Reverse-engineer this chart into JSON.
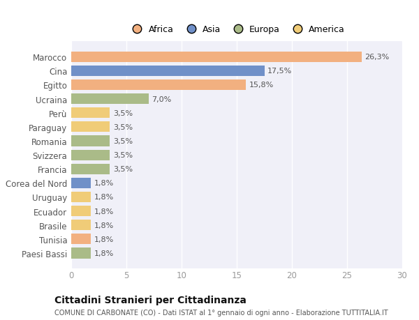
{
  "categories": [
    "Marocco",
    "Cina",
    "Egitto",
    "Ucraina",
    "Perù",
    "Paraguay",
    "Romania",
    "Svizzera",
    "Francia",
    "Corea del Nord",
    "Uruguay",
    "Ecuador",
    "Brasile",
    "Tunisia",
    "Paesi Bassi"
  ],
  "values": [
    26.3,
    17.5,
    15.8,
    7.0,
    3.5,
    3.5,
    3.5,
    3.5,
    3.5,
    1.8,
    1.8,
    1.8,
    1.8,
    1.8,
    1.8
  ],
  "labels": [
    "26,3%",
    "17,5%",
    "15,8%",
    "7,0%",
    "3,5%",
    "3,5%",
    "3,5%",
    "3,5%",
    "3,5%",
    "1,8%",
    "1,8%",
    "1,8%",
    "1,8%",
    "1,8%",
    "1,8%"
  ],
  "continents": [
    "Africa",
    "Asia",
    "Africa",
    "Europa",
    "America",
    "America",
    "Europa",
    "Europa",
    "Europa",
    "Asia",
    "America",
    "America",
    "America",
    "Africa",
    "Europa"
  ],
  "colors": {
    "Africa": "#F2B080",
    "Asia": "#7090C8",
    "Europa": "#AABB88",
    "America": "#F0CC78"
  },
  "legend_order": [
    "Africa",
    "Asia",
    "Europa",
    "America"
  ],
  "xlim": [
    0,
    30
  ],
  "xticks": [
    0,
    5,
    10,
    15,
    20,
    25,
    30
  ],
  "title": "Cittadini Stranieri per Cittadinanza",
  "subtitle": "COMUNE DI CARBONATE (CO) - Dati ISTAT al 1° gennaio di ogni anno - Elaborazione TUTTITALIA.IT",
  "background_color": "#FFFFFF",
  "plot_bg_color": "#F0F0F8",
  "bar_height": 0.75,
  "grid_color": "#FFFFFF",
  "label_color": "#555555",
  "tick_color": "#999999"
}
